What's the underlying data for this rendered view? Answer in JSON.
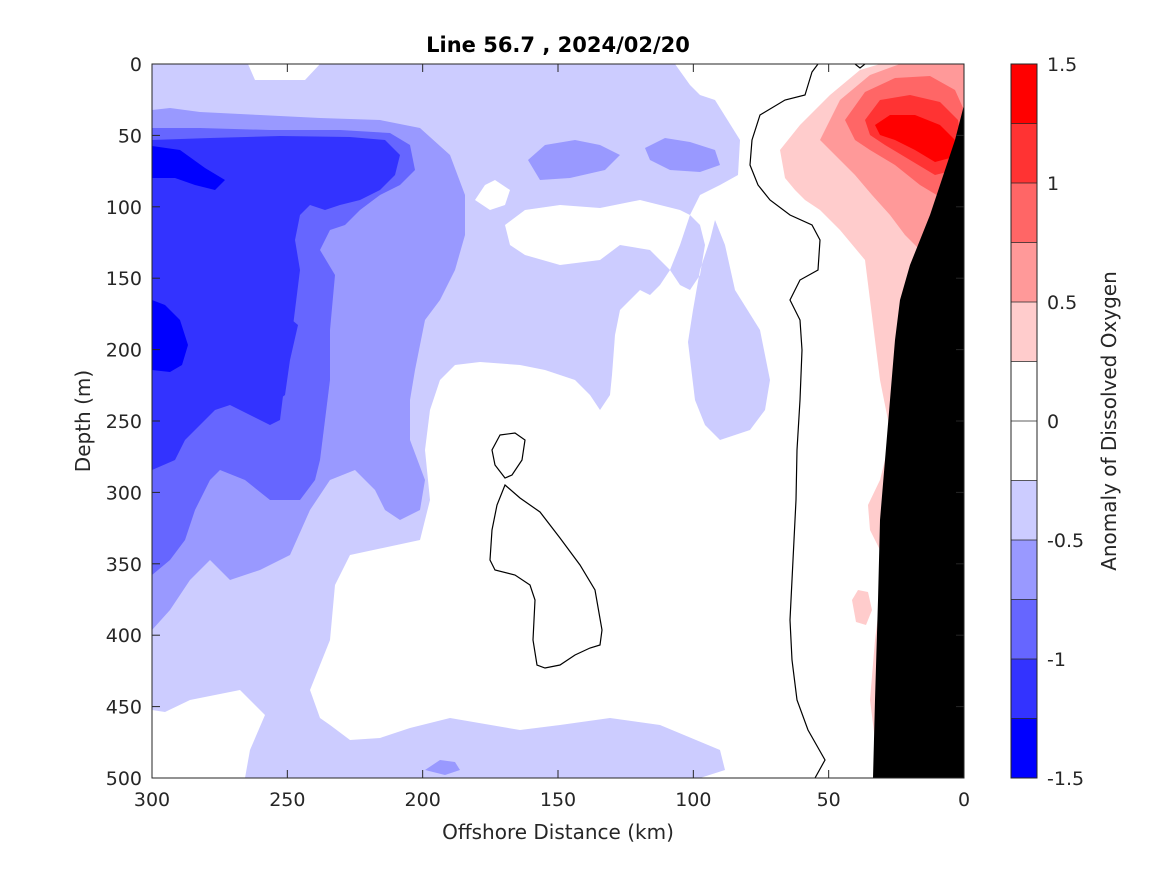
{
  "chart_data": {
    "type": "heatmap",
    "title": "Line 56.7 , 2024/02/20",
    "xlabel": "Offshore Distance (km)",
    "ylabel": "Depth (m)",
    "colorbar_label": "Anomaly of Dissolved Oxygen",
    "xlim": [
      300,
      0
    ],
    "ylim": [
      500,
      0
    ],
    "x_reversed": true,
    "y_reversed": true,
    "x_ticks": [
      300,
      250,
      200,
      150,
      100,
      50,
      0
    ],
    "y_ticks": [
      0,
      50,
      100,
      150,
      200,
      250,
      300,
      350,
      400,
      450,
      500
    ],
    "colorbar": {
      "range": [
        -1.5,
        1.5
      ],
      "levels": [
        -1.5,
        -1.25,
        -1.0,
        -0.75,
        -0.5,
        -0.25,
        0,
        0.25,
        0.5,
        0.75,
        1.0,
        1.25,
        1.5
      ],
      "tick_values": [
        -1.5,
        -1,
        -0.5,
        0,
        0.5,
        1,
        1.5
      ],
      "tick_labels": [
        "-1.5",
        "-1",
        "-0.5",
        "0",
        "0.5",
        "1",
        "1.5"
      ],
      "colors": [
        "#0000ff",
        "#3333ff",
        "#6666ff",
        "#9999ff",
        "#ccccff",
        "#ffffff",
        "#ffffff",
        "#ffcccc",
        "#ff9999",
        "#ff6666",
        "#ff3333",
        "#ff0000"
      ]
    },
    "zero_contour": "black line",
    "seafloor_color": "#000000",
    "regions": [
      {
        "anomaly_band": "-1.5 to -1.25",
        "location": "offshore ~290 km near 60-80 m and 180-210 m"
      },
      {
        "anomaly_band": "-1.25 to -0.5",
        "location": "offshore 300-230 km, 50-350 m"
      },
      {
        "anomaly_band": "-0.5 to -0.25",
        "location": "broad mid-section 300-70 km, surface to ~450 m"
      },
      {
        "anomaly_band": "0.25 to 1.5",
        "location": "nearshore 55-0 km, max ~1.25 near 15 km, 50 m"
      }
    ]
  }
}
